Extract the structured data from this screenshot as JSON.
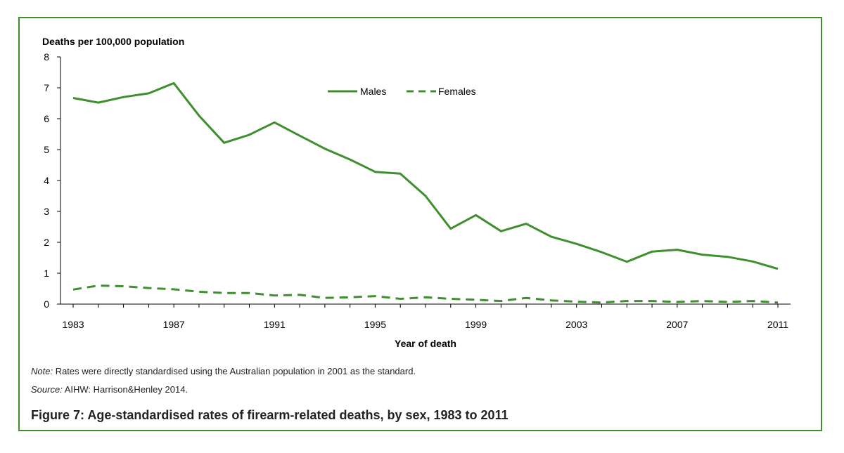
{
  "colors": {
    "frame": "#3f8f2f",
    "series": "#3f8f2f",
    "axis": "#000000"
  },
  "footer": {
    "note_label": "Note:",
    "note_text": " Rates were directly standardised using the Australian population in 2001 as the standard.",
    "source_label": "Source:",
    "source_text": " AIHW: Harrison&Henley 2014."
  },
  "caption": "Figure 7: Age-standardised rates of firearm-related deaths, by sex, 1983 to 2011",
  "chart_data": {
    "type": "line",
    "ylabel": "Deaths per 100,000 population",
    "xlabel": "Year of death",
    "ylim": [
      0,
      8
    ],
    "yticks": [
      0,
      1,
      2,
      3,
      4,
      5,
      6,
      7,
      8
    ],
    "xlim": [
      1983,
      2011
    ],
    "xticks": [
      1983,
      1987,
      1991,
      1995,
      1999,
      2003,
      2007,
      2011
    ],
    "legend_position": "top-center",
    "x": [
      1983,
      1984,
      1985,
      1986,
      1987,
      1988,
      1989,
      1990,
      1991,
      1992,
      1993,
      1994,
      1995,
      1996,
      1997,
      1998,
      1999,
      2000,
      2001,
      2002,
      2003,
      2004,
      2005,
      2006,
      2007,
      2008,
      2009,
      2010,
      2011
    ],
    "series": [
      {
        "name": "Males",
        "style": "solid",
        "values": [
          6.67,
          6.52,
          6.7,
          6.82,
          7.15,
          6.1,
          5.22,
          5.48,
          5.88,
          5.45,
          5.03,
          4.68,
          4.28,
          4.22,
          3.5,
          2.44,
          2.88,
          2.36,
          2.6,
          2.18,
          1.95,
          1.68,
          1.37,
          1.7,
          1.76,
          1.6,
          1.53,
          1.38,
          1.14
        ]
      },
      {
        "name": "Females",
        "style": "dashed",
        "values": [
          0.47,
          0.6,
          0.58,
          0.52,
          0.48,
          0.4,
          0.36,
          0.36,
          0.28,
          0.3,
          0.2,
          0.22,
          0.26,
          0.17,
          0.22,
          0.17,
          0.14,
          0.1,
          0.2,
          0.12,
          0.08,
          0.05,
          0.1,
          0.1,
          0.07,
          0.1,
          0.07,
          0.1,
          0.05
        ]
      }
    ]
  }
}
